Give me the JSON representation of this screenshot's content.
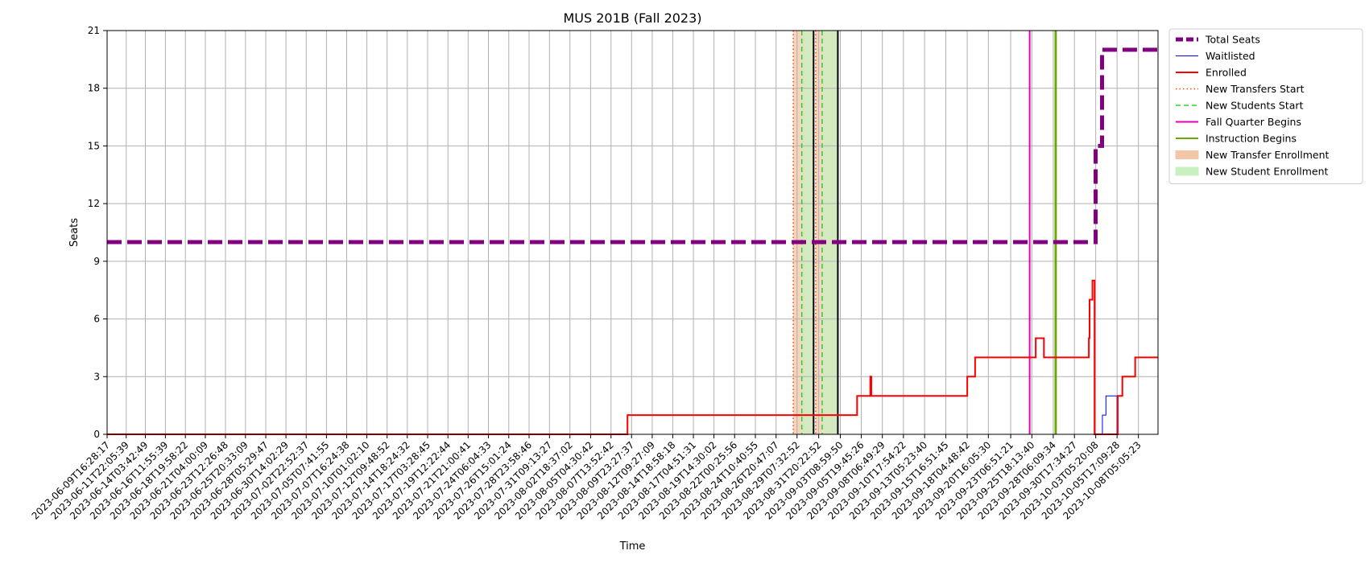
{
  "chart_data": {
    "type": "line",
    "title": "MUS 201B (Fall 2023)",
    "xlabel": "Time",
    "ylabel": "Seats",
    "ylim": [
      0,
      21
    ],
    "yticks": [
      0,
      3,
      6,
      9,
      12,
      15,
      18,
      21
    ],
    "xlim": [
      "2023-06-09T16:28:17",
      "2023-10-10T12:00:00"
    ],
    "grid": true,
    "legend_position": "outside-right-top",
    "xticks": [
      "2023-06-09T16:28:17",
      "2023-06-11T22:05:39",
      "2023-06-14T03:42:49",
      "2023-06-16T11:55:39",
      "2023-06-18T19:58:22",
      "2023-06-21T04:00:09",
      "2023-06-23T12:26:48",
      "2023-06-25T20:33:09",
      "2023-06-28T05:29:47",
      "2023-06-30T14:02:29",
      "2023-07-02T22:52:37",
      "2023-07-05T07:41:55",
      "2023-07-07T16:24:38",
      "2023-07-10T01:02:10",
      "2023-07-12T09:48:52",
      "2023-07-14T18:24:32",
      "2023-07-17T03:28:45",
      "2023-07-19T12:22:44",
      "2023-07-21T21:00:41",
      "2023-07-24T06:04:33",
      "2023-07-26T15:01:24",
      "2023-07-28T23:58:46",
      "2023-07-31T09:13:27",
      "2023-08-02T18:37:02",
      "2023-08-05T04:30:42",
      "2023-08-07T13:52:42",
      "2023-08-09T23:27:37",
      "2023-08-12T09:27:09",
      "2023-08-14T18:58:18",
      "2023-08-17T04:51:31",
      "2023-08-19T14:30:02",
      "2023-08-22T00:25:56",
      "2023-08-24T10:40:55",
      "2023-08-26T20:47:07",
      "2023-08-29T07:32:52",
      "2023-08-31T20:22:52",
      "2023-09-03T08:59:50",
      "2023-09-05T19:45:26",
      "2023-09-08T06:49:29",
      "2023-09-10T17:54:22",
      "2023-09-13T05:23:40",
      "2023-09-15T16:51:45",
      "2023-09-18T04:48:42",
      "2023-09-20T16:05:30",
      "2023-09-23T06:51:21",
      "2023-09-25T18:13:40",
      "2023-09-28T06:09:34",
      "2023-09-30T17:34:27",
      "2023-10-03T05:20:08",
      "2023-10-05T17:09:28",
      "2023-10-08T05:05:23"
    ],
    "series": [
      {
        "name": "Total Seats",
        "color": "#800080",
        "style": "dashed-thick",
        "step": true,
        "points": [
          [
            "2023-06-09T16:28:17",
            10
          ],
          [
            "2023-10-03T05:00:00",
            10
          ],
          [
            "2023-10-03T05:00:00",
            15
          ],
          [
            "2023-10-03T23:00:00",
            15
          ],
          [
            "2023-10-03T23:00:00",
            20
          ],
          [
            "2023-10-10T12:00:00",
            20
          ]
        ]
      },
      {
        "name": "Waitlisted",
        "color": "#0000ff",
        "style": "solid-thin",
        "step": true,
        "points": [
          [
            "2023-06-09T16:28:17",
            0
          ],
          [
            "2023-08-09T12:00:00",
            0
          ],
          [
            "2023-10-04T00:00:00",
            0
          ],
          [
            "2023-10-04T00:00:00",
            1
          ],
          [
            "2023-10-04T10:00:00",
            1
          ],
          [
            "2023-10-04T10:00:00",
            2
          ],
          [
            "2023-10-05T17:00:00",
            2
          ],
          [
            "2023-10-05T17:00:00",
            0
          ],
          [
            "2023-10-10T12:00:00",
            0
          ]
        ]
      },
      {
        "name": "Enrolled",
        "color": "#ff0000",
        "style": "solid",
        "step": true,
        "points": [
          [
            "2023-06-09T16:28:17",
            0
          ],
          [
            "2023-08-09T12:00:00",
            0
          ],
          [
            "2023-08-09T12:00:00",
            1
          ],
          [
            "2023-09-05T08:00:00",
            1
          ],
          [
            "2023-09-05T08:00:00",
            2
          ],
          [
            "2023-09-06T21:00:00",
            2
          ],
          [
            "2023-09-06T21:00:00",
            3
          ],
          [
            "2023-09-07T00:00:00",
            3
          ],
          [
            "2023-09-07T00:00:00",
            2
          ],
          [
            "2023-09-18T05:00:00",
            2
          ],
          [
            "2023-09-18T05:00:00",
            3
          ],
          [
            "2023-09-19T03:00:00",
            3
          ],
          [
            "2023-09-19T03:00:00",
            4
          ],
          [
            "2023-09-26T05:00:00",
            4
          ],
          [
            "2023-09-26T05:00:00",
            5
          ],
          [
            "2023-09-27T04:00:00",
            5
          ],
          [
            "2023-09-27T04:00:00",
            4
          ],
          [
            "2023-10-02T10:00:00",
            4
          ],
          [
            "2023-10-02T10:00:00",
            5
          ],
          [
            "2023-10-02T12:00:00",
            5
          ],
          [
            "2023-10-02T12:00:00",
            7
          ],
          [
            "2023-10-02T20:00:00",
            7
          ],
          [
            "2023-10-02T20:00:00",
            8
          ],
          [
            "2023-10-03T02:00:00",
            8
          ],
          [
            "2023-10-03T02:00:00",
            0
          ],
          [
            "2023-10-05T19:00:00",
            0
          ],
          [
            "2023-10-05T19:00:00",
            2
          ],
          [
            "2023-10-06T08:00:00",
            2
          ],
          [
            "2023-10-06T08:00:00",
            3
          ],
          [
            "2023-10-07T20:00:00",
            3
          ],
          [
            "2023-10-07T20:00:00",
            4
          ],
          [
            "2023-10-10T12:00:00",
            4
          ]
        ]
      }
    ],
    "vlines": [
      {
        "name": "New Transfers Start",
        "color": "#ff4500",
        "style": "dotted",
        "x": "2023-08-28T21:00:00"
      },
      {
        "name": "New Transfers Start",
        "color": "#ff4500",
        "style": "dotted",
        "x": "2023-08-31T12:00:00"
      },
      {
        "name": "New Students Start",
        "color": "#32cd32",
        "style": "dashed",
        "x": "2023-08-29T21:00:00"
      },
      {
        "name": "New Students Start",
        "color": "#32cd32",
        "style": "dashed",
        "x": "2023-09-01T06:00:00"
      },
      {
        "name": "Fall Quarter Begins",
        "color": "#e600b4",
        "style": "solid",
        "x": "2023-09-25T12:00:00"
      },
      {
        "name": "Instruction Begins",
        "color": "#6aa800",
        "style": "solid",
        "x": "2023-09-28T12:00:00"
      },
      {
        "name": "Instruction Begins",
        "color": "#6aa800",
        "style": "solid",
        "x": "2023-09-28T14:00:00"
      },
      {
        "name": "",
        "color": "#000000",
        "style": "solid",
        "x": "2023-08-31T06:00:00"
      },
      {
        "name": "",
        "color": "#000000",
        "style": "solid",
        "x": "2023-09-03T02:00:00"
      }
    ],
    "spans": [
      {
        "name": "New Transfer Enrollment",
        "color": "#f4c6a8",
        "start": "2023-08-28T21:00:00",
        "end": "2023-08-31T06:00:00"
      },
      {
        "name": "New Student Enrollment",
        "color": "#c8f0c0",
        "start": "2023-08-29T21:00:00",
        "end": "2023-08-31T06:00:00"
      },
      {
        "name": "New Transfer Enrollment",
        "color": "#f4c6a8",
        "start": "2023-08-31T12:00:00",
        "end": "2023-09-03T02:00:00"
      },
      {
        "name": "New Student Enrollment",
        "color": "#c8f0c0",
        "start": "2023-09-01T06:00:00",
        "end": "2023-09-03T02:00:00"
      }
    ],
    "legend": [
      {
        "label": "Total Seats",
        "kind": "line",
        "color": "#800080",
        "style": "dashed-thick"
      },
      {
        "label": "Waitlisted",
        "kind": "line",
        "color": "#0000ff",
        "style": "solid-thin"
      },
      {
        "label": "Enrolled",
        "kind": "line",
        "color": "#ff0000",
        "style": "solid"
      },
      {
        "label": "New Transfers Start",
        "kind": "line",
        "color": "#ff4500",
        "style": "dotted"
      },
      {
        "label": "New Students Start",
        "kind": "line",
        "color": "#32cd32",
        "style": "dashed"
      },
      {
        "label": "Fall Quarter Begins",
        "kind": "line",
        "color": "#e600b4",
        "style": "solid"
      },
      {
        "label": "Instruction Begins",
        "kind": "line",
        "color": "#6aa800",
        "style": "solid"
      },
      {
        "label": "New Transfer Enrollment",
        "kind": "patch",
        "color": "#f4c6a8"
      },
      {
        "label": "New Student Enrollment",
        "kind": "patch",
        "color": "#c8f0c0"
      }
    ]
  }
}
